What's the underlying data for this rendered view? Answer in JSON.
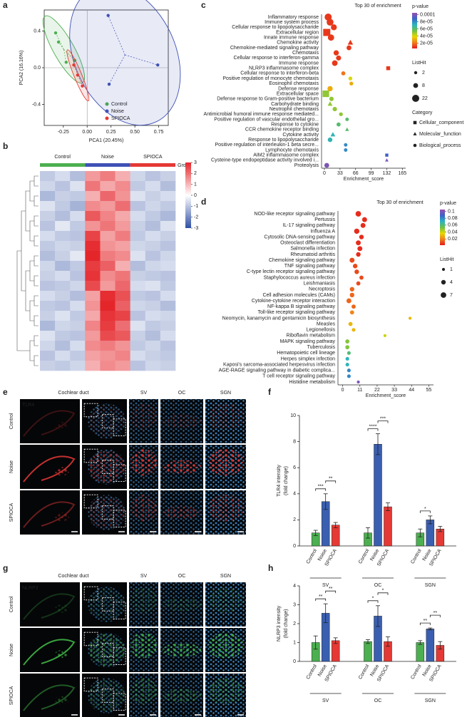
{
  "chart_data": [
    {
      "type": "scatter",
      "label": "a",
      "x_label": "PCA1 (20.45%)",
      "y_label": "PCA2 (16.16%)",
      "xlim": [
        -0.45,
        0.85
      ],
      "ylim": [
        -0.63,
        0.63
      ],
      "xticks": [
        {
          "value": -0.25,
          "label": "-0.25"
        },
        {
          "value": 0,
          "label": "0.00"
        },
        0.25,
        {
          "value": 0.5,
          "label": "0.50"
        },
        0.75
      ],
      "yticks": [
        0.4,
        {
          "value": 0,
          "label": "0.0"
        },
        -0.4
      ],
      "series": [
        {
          "name": "Control",
          "color": "#4caf50",
          "x": [
            -0.33,
            -0.3,
            -0.22,
            -0.13
          ],
          "values": [
            0.38,
            0.28,
            0.06,
            0.08
          ]
        },
        {
          "name": "Noise",
          "color": "#3f51b5",
          "x": [
            0.22,
            0.74,
            0.23
          ],
          "values": [
            0.57,
            0.03,
            -0.18
          ]
        },
        {
          "name": "SPIOCA",
          "color": "#e53935",
          "x": [
            -0.14,
            -0.1,
            -0.05
          ],
          "values": [
            0.03,
            -0.08,
            -0.2
          ]
        }
      ]
    },
    {
      "type": "heatmap",
      "label": "b",
      "groups": [
        "Control",
        "Noise",
        "SPIOCA"
      ],
      "group_colors": [
        "#4caf50",
        "#3f51b5",
        "#e53935"
      ],
      "group_label": "Group",
      "clim": [
        -3,
        3
      ],
      "colorbar_ticks": [
        3,
        2,
        1,
        0,
        -1,
        -2,
        -3
      ],
      "colormap": [
        "#2f4fa3",
        "#ffffff",
        "#e4262b"
      ],
      "z": [
        [
          -0.9,
          -0.6,
          -1.1,
          1.4,
          1.8,
          1.1,
          -0.7,
          -1.0,
          -0.8
        ],
        [
          -0.7,
          -1.0,
          -0.5,
          1.9,
          1.2,
          1.6,
          -0.9,
          -0.6,
          -1.1
        ],
        [
          -1.2,
          -0.8,
          -0.9,
          1.1,
          2.1,
          1.5,
          -0.5,
          -0.8,
          -0.6
        ],
        [
          -0.5,
          -0.9,
          -1.3,
          1.6,
          1.4,
          2.0,
          -1.0,
          -0.7,
          -0.9
        ],
        [
          -0.8,
          -1.1,
          -0.6,
          2.3,
          1.7,
          1.2,
          -0.6,
          -0.9,
          -1.2
        ],
        [
          -1.0,
          -0.4,
          -0.9,
          1.5,
          1.9,
          1.4,
          -0.8,
          -1.1,
          -0.5
        ],
        [
          -0.6,
          -0.9,
          -1.0,
          2.6,
          1.3,
          1.8,
          -0.9,
          -0.6,
          -0.8
        ],
        [
          -0.9,
          -0.7,
          -0.8,
          2.9,
          1.5,
          1.3,
          -0.7,
          -0.8,
          -1.0
        ],
        [
          -1.1,
          -0.8,
          -0.4,
          3.0,
          1.8,
          1.6,
          -0.5,
          -1.0,
          -0.7
        ],
        [
          -0.7,
          -1.2,
          -0.9,
          2.7,
          2.2,
          1.1,
          -1.1,
          -0.7,
          -0.6
        ],
        [
          -0.8,
          -0.6,
          -1.0,
          2.8,
          1.6,
          1.9,
          -0.8,
          -0.9,
          -1.0
        ],
        [
          -1.0,
          -0.9,
          -0.7,
          2.5,
          1.4,
          2.1,
          -0.6,
          -0.5,
          -0.9
        ],
        [
          -0.6,
          -0.8,
          -1.1,
          1.3,
          2.9,
          2.4,
          -0.9,
          -1.0,
          -0.6
        ],
        [
          -0.9,
          -1.0,
          -0.6,
          1.5,
          3.0,
          2.2,
          -0.7,
          -0.8,
          -1.1
        ],
        [
          -0.8,
          -0.5,
          -0.9,
          1.2,
          2.8,
          2.6,
          -1.0,
          -0.6,
          -0.7
        ],
        [
          -1.2,
          -0.7,
          -0.8,
          1.7,
          2.7,
          2.0,
          -0.5,
          -0.9,
          -0.8
        ],
        [
          -0.5,
          -0.9,
          -1.0,
          1.4,
          2.5,
          2.3,
          -0.8,
          -1.1,
          -0.6
        ],
        [
          -0.7,
          -1.1,
          -0.6,
          1.6,
          1.8,
          1.5,
          -0.9,
          -0.7,
          -1.0
        ],
        [
          -1.0,
          -0.6,
          -0.9,
          1.3,
          1.5,
          1.7,
          -0.6,
          -0.8,
          -0.9
        ],
        [
          -0.8,
          -0.9,
          -0.7,
          1.1,
          1.6,
          1.4,
          -1.0,
          -0.7,
          -0.8
        ]
      ]
    },
    {
      "type": "dotplot",
      "label": "c",
      "title": "Top 30 of enrichment",
      "x_label": "Enrichment_score",
      "xlim": [
        -6,
        172
      ],
      "xticks": [
        0,
        33,
        66,
        99,
        132,
        165
      ],
      "categories": [
        "Inflammatory response",
        "Immune system process",
        "Cellular response to lipopolysaccharide",
        "Extracellular region",
        "Innate immune response",
        "Chemokine activity",
        "Chemokine-mediated signaling pathway",
        "Chemotaxis",
        "Cellular response to interferon-gamma",
        "Immune response",
        "NLRP3 inflammasome complex",
        "Cellular response to interferon-beta",
        "Positive regulation of monocyte chemotaxis",
        "Eosinophil chemotaxis",
        "Defense response",
        "Extracellular space",
        "Defense response to Gram-positive bacterium",
        "Carbohydrate binding",
        "Neutrophil chemotaxis",
        "Antimicrobial humoral immune response mediated...",
        "Positive regulation of vascular endothelial gro...",
        "Response to cytokine",
        "CCR chemokine receptor binding",
        "Cytokine activity",
        "Response to lipopolysaccharide",
        "Positive regulation of interleukin-1 beta secre...",
        "Lymphocyte chemotaxis",
        "AIM2 inflammasome complex",
        "Cysteine-type endopeptidase activity involved i...",
        "Proteolysis"
      ],
      "values": [
        8,
        12,
        20,
        5,
        14,
        55,
        52,
        25,
        30,
        22,
        135,
        40,
        55,
        57,
        12,
        3,
        15,
        12,
        22,
        35,
        48,
        30,
        48,
        18,
        12,
        45,
        45,
        132,
        132,
        5
      ],
      "p_values": [
        1e-05,
        1e-05,
        1e-05,
        1e-05,
        1e-05,
        1e-05,
        1e-05,
        1e-05,
        1e-05,
        1e-05,
        1e-05,
        2e-05,
        4e-05,
        3e-05,
        3e-05,
        5e-05,
        5e-05,
        5e-05,
        5e-05,
        5e-05,
        6e-05,
        6e-05,
        6e-05,
        7e-05,
        7e-05,
        8e-05,
        8e-05,
        9e-05,
        0.0001,
        0.0001
      ],
      "list_hits": [
        22,
        20,
        14,
        22,
        16,
        8,
        8,
        10,
        9,
        12,
        4,
        5,
        4,
        4,
        10,
        18,
        6,
        6,
        6,
        4,
        3,
        5,
        3,
        6,
        7,
        3,
        3,
        2,
        2,
        8
      ],
      "category_types": [
        "Biological_process",
        "Biological_process",
        "Biological_process",
        "Cellular_component",
        "Biological_process",
        "Molecular_function",
        "Biological_process",
        "Biological_process",
        "Biological_process",
        "Biological_process",
        "Cellular_component",
        "Biological_process",
        "Biological_process",
        "Biological_process",
        "Biological_process",
        "Cellular_component",
        "Biological_process",
        "Molecular_function",
        "Biological_process",
        "Biological_process",
        "Biological_process",
        "Biological_process",
        "Molecular_function",
        "Molecular_function",
        "Biological_process",
        "Biological_process",
        "Biological_process",
        "Cellular_component",
        "Molecular_function",
        "Biological_process"
      ],
      "label_colors": [
        "#d32f2f",
        "#d32f2f",
        "#d32f2f",
        "#222222",
        "#d32f2f",
        "#d32f2f",
        "#d32f2f",
        "#d32f2f",
        "#d32f2f",
        "#d32f2f",
        "#d32f2f",
        "#d32f2f",
        "#222222",
        "#222222",
        "#222222",
        "#222222",
        "#222222",
        "#222222",
        "#222222",
        "#222222",
        "#222222",
        "#222222",
        "#222222",
        "#222222",
        "#222222",
        "#222222",
        "#222222",
        "#222222",
        "#222222",
        "#222222"
      ],
      "color_legend": {
        "title": "p-value",
        "clim": [
          5e-06,
          0.000105
        ],
        "colormap": [
          "#e41a1c",
          "#f07f1a",
          "#e6d800",
          "#6cc04a",
          "#2bb3c0",
          "#3a63c8",
          "#9a4fb0"
        ],
        "ticks": [
          0.0001,
          {
            "value": 8e-05,
            "label": "8e-05"
          },
          {
            "value": 6e-05,
            "label": "6e-05"
          },
          {
            "value": 4e-05,
            "label": "4e-05"
          },
          {
            "value": 2e-05,
            "label": "2e-05"
          }
        ]
      },
      "size_legend": {
        "title": "ListHit",
        "values": [
          2,
          8,
          22
        ]
      },
      "shape_legend": {
        "title": "Category",
        "items": [
          "Cellular_component",
          "Molecular_function",
          "Biological_process"
        ]
      }
    },
    {
      "type": "dotplot",
      "label": "d",
      "title": "Top 30 of enrichment",
      "x_label": "Enrichment_score",
      "xlim": [
        -3,
        58
      ],
      "xticks": [
        0,
        11,
        22,
        33,
        44,
        55
      ],
      "categories": [
        "NOD-like receptor signaling pathway",
        "Pertussis",
        "IL-17 signaling pathway",
        "Influenza A",
        "Cytosolic DNA-sensing pathway",
        "Osteoclast differentiation",
        "Salmonella infection",
        "Rheumatoid arthritis",
        "Chemokine signaling pathway",
        "TNF signaling pathway",
        "C-type lectin receptor signaling pathway",
        "Staphylococcus aureus infection",
        "Leishmaniasis",
        "Necroptosis",
        "Cell adhesion molecules (CAMs)",
        "Cytokine-cytokine receptor interaction",
        "NF-kappa B signaling pathway",
        "Toll-like receptor signaling pathway",
        "Neomycin, kanamycin and gentamicin biosynthesis",
        "Measles",
        "Legionellosis",
        "Riboflavin metabolism",
        "MAPK signaling pathway",
        "Tuberculosis",
        "Hematopoietic cell lineage",
        "Herpes simplex infection",
        "Kaposi's sarcoma-associated herpesvirus infection",
        "AGE-RAGE signaling pathway in diabetic complica...",
        "T cell receptor signaling pathway",
        "Histidine metabolism"
      ],
      "values": [
        10,
        14,
        13,
        9,
        12,
        10,
        11,
        10,
        6,
        8,
        9,
        12,
        10,
        6,
        6,
        4,
        7,
        6,
        43,
        5,
        7,
        27,
        3,
        3,
        4,
        3,
        3,
        4,
        4,
        10
      ],
      "p_values": [
        0.005,
        0.005,
        0.005,
        0.005,
        0.005,
        0.005,
        0.005,
        0.005,
        0.01,
        0.01,
        0.01,
        0.01,
        0.01,
        0.015,
        0.015,
        0.015,
        0.015,
        0.02,
        0.03,
        0.03,
        0.03,
        0.04,
        0.05,
        0.05,
        0.06,
        0.07,
        0.07,
        0.08,
        0.08,
        0.1
      ],
      "list_hits": [
        7,
        5,
        5,
        6,
        4,
        5,
        5,
        4,
        5,
        4,
        4,
        3,
        3,
        4,
        4,
        5,
        3,
        3,
        1,
        3,
        2,
        1,
        3,
        3,
        2,
        2,
        2,
        2,
        2,
        1
      ],
      "label_colors": [
        "#d32f2f",
        "#222222",
        "#d32f2f",
        "#222222",
        "#222222",
        "#222222",
        "#222222",
        "#222222",
        "#d32f2f",
        "#d32f2f",
        "#d32f2f",
        "#222222",
        "#222222",
        "#222222",
        "#222222",
        "#d32f2f",
        "#d32f2f",
        "#d32f2f",
        "#222222",
        "#222222",
        "#222222",
        "#222222",
        "#222222",
        "#222222",
        "#222222",
        "#222222",
        "#222222",
        "#222222",
        "#222222",
        "#222222"
      ],
      "color_legend": {
        "title": "p-value",
        "clim": [
          0.002,
          0.105
        ],
        "colormap": [
          "#e41a1c",
          "#f07f1a",
          "#e6d800",
          "#6cc04a",
          "#2bb3c0",
          "#3a63c8",
          "#9a4fb0"
        ],
        "ticks": [
          0.1,
          0.08,
          0.06,
          0.04,
          0.02
        ]
      },
      "size_legend": {
        "title": "ListHit",
        "values": [
          1,
          4,
          7
        ]
      }
    },
    {
      "type": "bar",
      "label": "f",
      "y_label": [
        "TLR4 intensity",
        "(fold change)"
      ],
      "categories": [
        "SV",
        "OC",
        "SGN"
      ],
      "ylim": [
        0,
        10
      ],
      "yticks": [
        0,
        2,
        4,
        6,
        8,
        10
      ],
      "series": [
        {
          "name": "Control",
          "color": "#4caf50",
          "values": [
            1,
            1,
            1
          ],
          "errors": [
            0.2,
            0.4,
            0.3
          ]
        },
        {
          "name": "Noise",
          "color": "#3a5fb0",
          "values": [
            3.4,
            7.8,
            2.0
          ],
          "errors": [
            0.6,
            0.8,
            0.3
          ]
        },
        {
          "name": "SPIOCA",
          "color": "#e53935",
          "values": [
            1.6,
            3.0,
            1.3
          ],
          "errors": [
            0.2,
            0.3,
            0.2
          ]
        }
      ],
      "annotations": [
        {
          "group": "SV",
          "between": [
            "Control",
            "Noise"
          ],
          "text": "***"
        },
        {
          "group": "SV",
          "between": [
            "Noise",
            "SPIOCA"
          ],
          "text": "**"
        },
        {
          "group": "OC",
          "between": [
            "Control",
            "Noise"
          ],
          "text": "****"
        },
        {
          "group": "OC",
          "between": [
            "Noise",
            "SPIOCA"
          ],
          "text": "***"
        },
        {
          "group": "SGN",
          "between": [
            "Control",
            "Noise"
          ],
          "text": "*"
        }
      ]
    },
    {
      "type": "bar",
      "label": "h",
      "y_label": [
        "NLRP3 intensity",
        "(fold change)"
      ],
      "categories": [
        "SV",
        "OC",
        "SGN"
      ],
      "ylim": [
        0,
        4
      ],
      "yticks": [
        0,
        1,
        2,
        3,
        4
      ],
      "series": [
        {
          "name": "Control",
          "color": "#4caf50",
          "values": [
            1,
            1.05,
            1
          ],
          "errors": [
            0.35,
            0.1,
            0.1
          ]
        },
        {
          "name": "Noise",
          "color": "#3a5fb0",
          "values": [
            2.55,
            2.4,
            1.72
          ],
          "errors": [
            0.5,
            0.55,
            0.05
          ]
        },
        {
          "name": "SPIOCA",
          "color": "#e53935",
          "values": [
            1.1,
            1.05,
            0.85
          ],
          "errors": [
            0.15,
            0.25,
            0.2
          ]
        }
      ],
      "annotations": [
        {
          "group": "SV",
          "between": [
            "Control",
            "Noise"
          ],
          "text": "**"
        },
        {
          "group": "SV",
          "between": [
            "Noise",
            "SPIOCA"
          ],
          "text": "**"
        },
        {
          "group": "OC",
          "between": [
            "Control",
            "Noise"
          ],
          "text": "*"
        },
        {
          "group": "OC",
          "between": [
            "Noise",
            "SPIOCA"
          ],
          "text": "*"
        },
        {
          "group": "SGN",
          "between": [
            "Control",
            "Noise"
          ],
          "text": "**"
        },
        {
          "group": "SGN",
          "between": [
            "Noise",
            "SPIOCA"
          ],
          "text": "**"
        }
      ]
    }
  ],
  "micrographs": [
    {
      "label": "e",
      "stain": "TLR4",
      "stain_color": "#e53935",
      "columns": [
        "Cochlear duct",
        "SV",
        "OC",
        "SGN"
      ],
      "rows": [
        "Control",
        "Noise",
        "SPIOCA"
      ]
    },
    {
      "label": "g",
      "stain": "NLRP3",
      "stain_color": "#43c04a",
      "columns": [
        "Cochlear duct",
        "SV",
        "OC",
        "SGN"
      ],
      "rows": [
        "Control",
        "Noise",
        "SPIOCA"
      ]
    }
  ]
}
